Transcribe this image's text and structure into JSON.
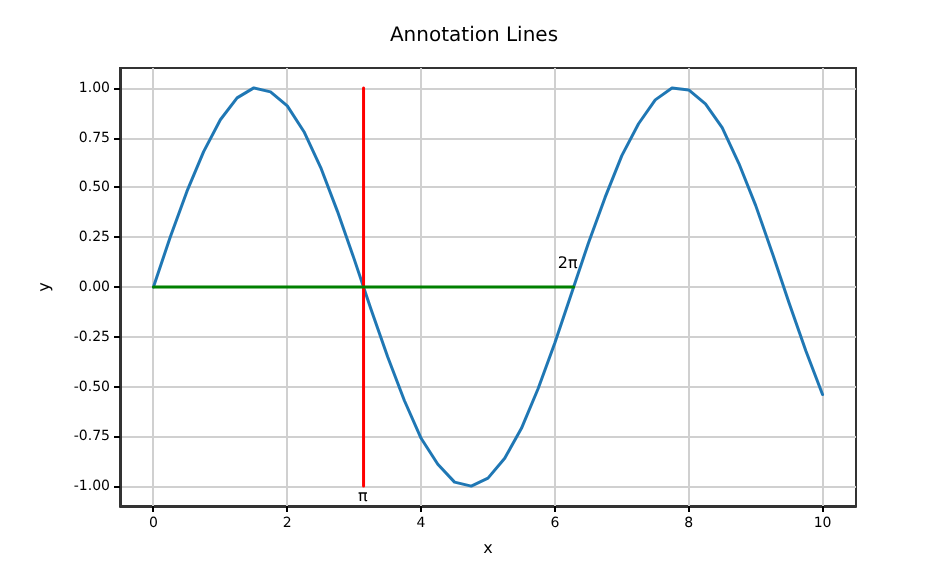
{
  "chart_data": {
    "type": "line",
    "title": "Annotation Lines",
    "xlabel": "x",
    "ylabel": "y",
    "series": [
      {
        "color": "#1f77b4",
        "x": [
          0,
          0.25,
          0.5,
          0.75,
          1,
          1.25,
          1.5,
          1.75,
          2,
          2.25,
          2.5,
          2.75,
          3,
          3.25,
          3.5,
          3.75,
          4,
          4.25,
          4.5,
          4.75,
          5,
          5.25,
          5.5,
          5.75,
          6,
          6.25,
          6.5,
          6.75,
          7,
          7.25,
          7.5,
          7.75,
          8,
          8.25,
          8.5,
          8.75,
          9,
          9.25,
          9.5,
          9.75,
          10
        ],
        "values": [
          0,
          0.25,
          0.48,
          0.68,
          0.84,
          0.95,
          1.0,
          0.98,
          0.91,
          0.78,
          0.6,
          0.38,
          0.14,
          -0.11,
          -0.35,
          -0.57,
          -0.76,
          -0.89,
          -0.98,
          -1.0,
          -0.96,
          -0.86,
          -0.71,
          -0.51,
          -0.28,
          -0.03,
          0.22,
          0.45,
          0.66,
          0.82,
          0.94,
          1.0,
          0.99,
          0.92,
          0.8,
          0.62,
          0.41,
          0.17,
          -0.08,
          -0.32,
          -0.54
        ]
      },
      {
        "color": "#ff0000",
        "x": [
          3.14,
          3.14
        ],
        "values": [
          -1,
          1
        ]
      },
      {
        "color": "#008000",
        "x": [
          0,
          6.28
        ],
        "values": [
          0,
          0
        ]
      }
    ],
    "annotations": [
      {
        "text": "π",
        "x": 3.14,
        "y": -1.05
      },
      {
        "text": "2π",
        "x": 6.28,
        "y": 0.12
      }
    ],
    "xlim": [
      -0.5,
      10.5
    ],
    "ylim": [
      -1.1,
      1.1
    ],
    "xticks": [
      0,
      2,
      4,
      6,
      8,
      10
    ],
    "yticks": [
      {
        "value": -1,
        "label": "-1.00"
      },
      {
        "value": -0.75,
        "label": "-0.75"
      },
      {
        "value": -0.5,
        "label": "-0.50"
      },
      {
        "value": -0.25,
        "label": "-0.25"
      },
      {
        "value": 0,
        "label": "0.00"
      },
      {
        "value": 0.25,
        "label": "0.25"
      },
      {
        "value": 0.5,
        "label": "0.50"
      },
      {
        "value": 0.75,
        "label": "0.75"
      },
      {
        "value": 1,
        "label": "1.00"
      }
    ],
    "grid": true,
    "marker": "none",
    "line_style": "solid"
  }
}
